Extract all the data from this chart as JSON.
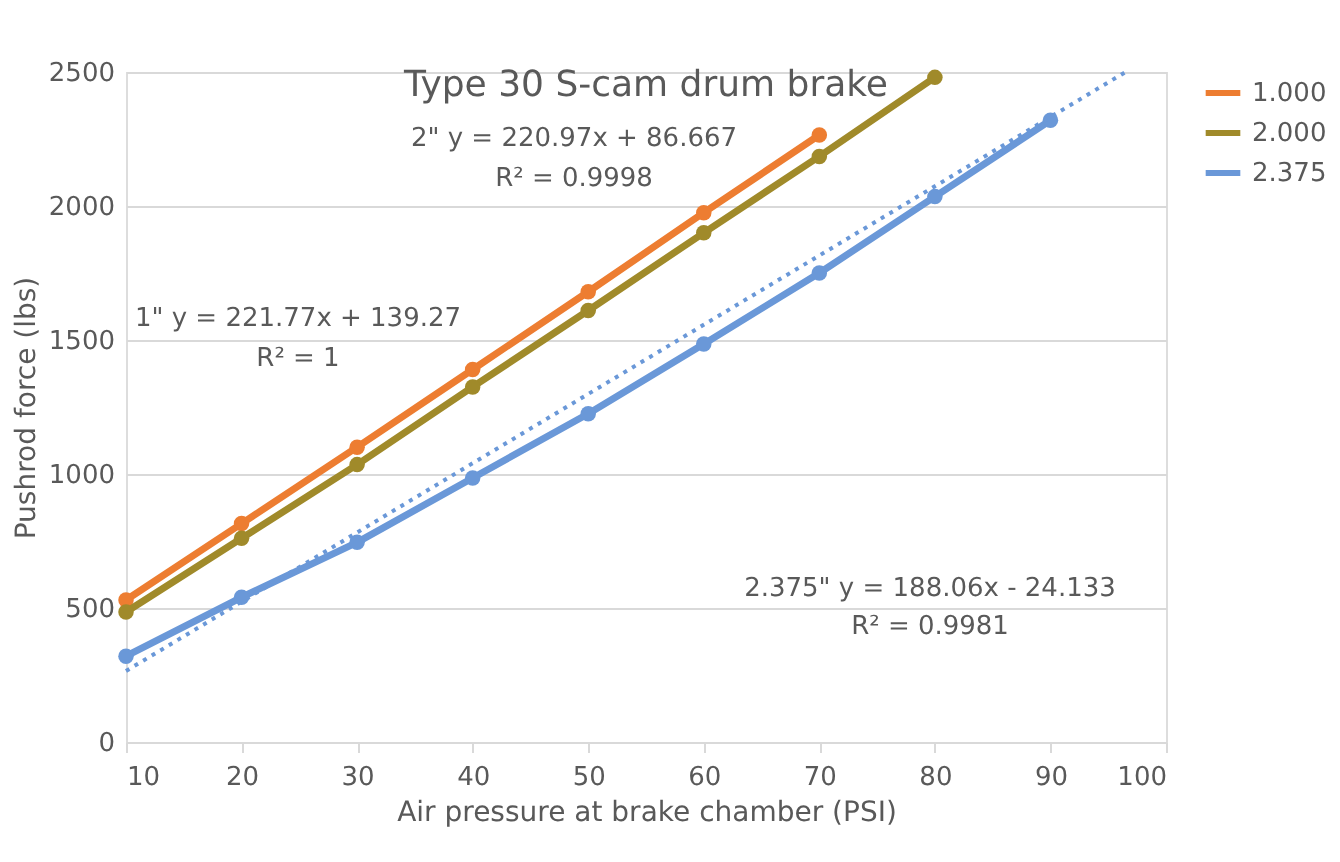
{
  "chart_data": {
    "type": "line",
    "title": "Type 30 S-cam drum brake",
    "xlabel": "Air pressure at brake chamber (PSI)",
    "ylabel": "Pushrod force (lbs)",
    "xlim": [
      10,
      100
    ],
    "xticks": [
      10,
      20,
      30,
      40,
      50,
      60,
      70,
      80,
      90,
      100
    ],
    "ylim": [
      0,
      2500
    ],
    "yticks": [
      0,
      500,
      1000,
      1500,
      2000,
      2500
    ],
    "grid": "y",
    "legend": "right",
    "marker": "circle",
    "line_style": "solid",
    "series": [
      {
        "name": "1.000",
        "color": "#ed7d31",
        "x": [
          10,
          20,
          30,
          40,
          50,
          60,
          70
        ],
        "values": [
          530,
          815,
          1100,
          1390,
          1680,
          1975,
          2265
        ]
      },
      {
        "name": "2.000",
        "color": "#a08a2a",
        "x": [
          10,
          20,
          30,
          40,
          50,
          60,
          70,
          80
        ],
        "values": [
          485,
          760,
          1035,
          1325,
          1610,
          1900,
          2185,
          2480
        ]
      },
      {
        "name": "2.375",
        "color": "#6a98d8",
        "x": [
          10,
          20,
          30,
          40,
          50,
          60,
          70,
          80,
          90
        ],
        "values": [
          320,
          540,
          745,
          985,
          1225,
          1485,
          1750,
          2035,
          2320
        ]
      },
      {
        "type": "line",
        "color": "#6a98d8",
        "line_style": "dotted",
        "marker": "none",
        "x": [
          10,
          96.5
        ],
        "values": [
          265,
          2500
        ]
      }
    ],
    "annotations": [
      "2\" y = 220.97x + 86.667",
      "R² = 0.9998",
      "1\" y = 221.77x + 139.27",
      "R² = 1",
      "2.375\" y = 188.06x - 24.133",
      "R² = 0.9981"
    ]
  }
}
